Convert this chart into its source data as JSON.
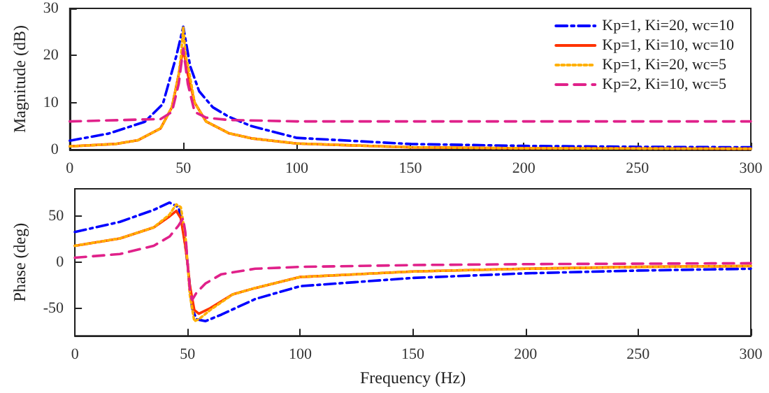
{
  "chart_data": [
    {
      "type": "line",
      "ylabel": "Magnitude (dB)",
      "xlim": [
        0,
        300
      ],
      "xticks": [
        0,
        50,
        100,
        150,
        200,
        250,
        300
      ],
      "ylim": [
        0,
        30
      ],
      "yticks": [
        0,
        10,
        20,
        30
      ],
      "grid": false,
      "legend": "top right",
      "marker": "none",
      "series": [
        {
          "name": "Kp=1, Ki=20, wc=10",
          "color": "#0000ff",
          "line_style": "dashdot",
          "x": [
            0,
            17,
            33,
            41,
            47,
            50,
            53,
            57,
            63,
            70,
            80,
            100,
            150,
            200,
            250,
            300
          ],
          "values": [
            1.9,
            3.4,
            5.9,
            9.7,
            20,
            26.1,
            17.8,
            12.4,
            9,
            7,
            5,
            2.5,
            1.2,
            0.8,
            0.6,
            0.5
          ]
        },
        {
          "name": "Kp=1, Ki=10, wc=10",
          "color": "#ff3300",
          "line_style": "solid",
          "x": [
            0,
            20,
            30,
            40,
            45,
            48,
            49,
            50,
            51,
            52,
            55,
            60,
            70,
            80,
            100,
            150,
            200,
            300
          ],
          "values": [
            0.7,
            1.2,
            2,
            4.5,
            9,
            16,
            19,
            21,
            19,
            16,
            10,
            6,
            3.5,
            2.4,
            1.3,
            0.5,
            0.3,
            0.2
          ]
        },
        {
          "name": "Kp=1, Ki=20, wc=5",
          "color": "#ffb000",
          "line_style": "dotted",
          "x": [
            0,
            20,
            30,
            40,
            45,
            48,
            49,
            50,
            51,
            52,
            55,
            60,
            70,
            80,
            100,
            150,
            200,
            300
          ],
          "values": [
            0.7,
            1.2,
            2,
            4.5,
            9,
            16,
            20,
            26,
            20,
            18,
            10,
            6,
            3.5,
            2.4,
            1.3,
            0.5,
            0.3,
            0.2
          ]
        },
        {
          "name": "Kp=2, Ki=10, wc=5",
          "color": "#e0218a",
          "line_style": "dashed",
          "x": [
            0,
            40,
            45,
            48,
            50,
            52,
            55,
            60,
            70,
            100,
            300
          ],
          "values": [
            6,
            6.5,
            8,
            14,
            21.5,
            14,
            8,
            6.8,
            6.3,
            6,
            6
          ]
        }
      ]
    },
    {
      "type": "line",
      "xlabel": "Frequency (Hz)",
      "ylabel": "Phase (deg)",
      "xlim": [
        0,
        300
      ],
      "xticks": [
        0,
        50,
        100,
        150,
        200,
        250,
        300
      ],
      "ylim": [
        -80,
        80
      ],
      "yticks": [
        {
          "value": -50,
          "label": "-50"
        },
        0,
        50
      ],
      "grid": false,
      "marker": "none",
      "series": [
        {
          "color": "#0000ff",
          "line_style": "dashdot",
          "x": [
            0,
            20,
            35,
            42,
            46,
            48,
            50,
            52,
            54,
            58,
            65,
            80,
            100,
            150,
            200,
            250,
            300
          ],
          "values": [
            33,
            44,
            57,
            65,
            60,
            38,
            -1,
            -50,
            -62,
            -64,
            -57,
            -40,
            -26,
            -17,
            -12,
            -9,
            -7
          ]
        },
        {
          "color": "#ff3300",
          "line_style": "solid",
          "x": [
            0,
            20,
            35,
            42,
            45,
            47,
            49,
            50,
            51,
            53,
            55,
            60,
            70,
            80,
            100,
            150,
            200,
            250,
            300
          ],
          "values": [
            18,
            26,
            38,
            50,
            56,
            48,
            18,
            -1,
            -25,
            -52,
            -56,
            -50,
            -35,
            -28,
            -16,
            -10,
            -7,
            -5,
            -4
          ]
        },
        {
          "color": "#ffb000",
          "line_style": "dotted",
          "x": [
            0,
            20,
            35,
            42,
            45,
            47,
            49,
            50,
            51,
            53,
            55,
            60,
            70,
            80,
            100,
            150,
            200,
            250,
            300
          ],
          "values": [
            18,
            26,
            38,
            52,
            63,
            60,
            30,
            -1,
            -35,
            -64,
            -62,
            -52,
            -35,
            -28,
            -16,
            -10,
            -7,
            -5,
            -4
          ]
        },
        {
          "color": "#e0218a",
          "line_style": "dashed",
          "x": [
            0,
            20,
            35,
            42,
            46,
            48,
            49,
            50,
            51,
            52,
            54,
            58,
            65,
            80,
            100,
            150,
            200,
            300
          ],
          "values": [
            5,
            9,
            18,
            28,
            40,
            48,
            33,
            -1,
            -30,
            -41,
            -33,
            -23,
            -13,
            -7,
            -5,
            -3,
            -2,
            -1
          ]
        }
      ]
    }
  ]
}
